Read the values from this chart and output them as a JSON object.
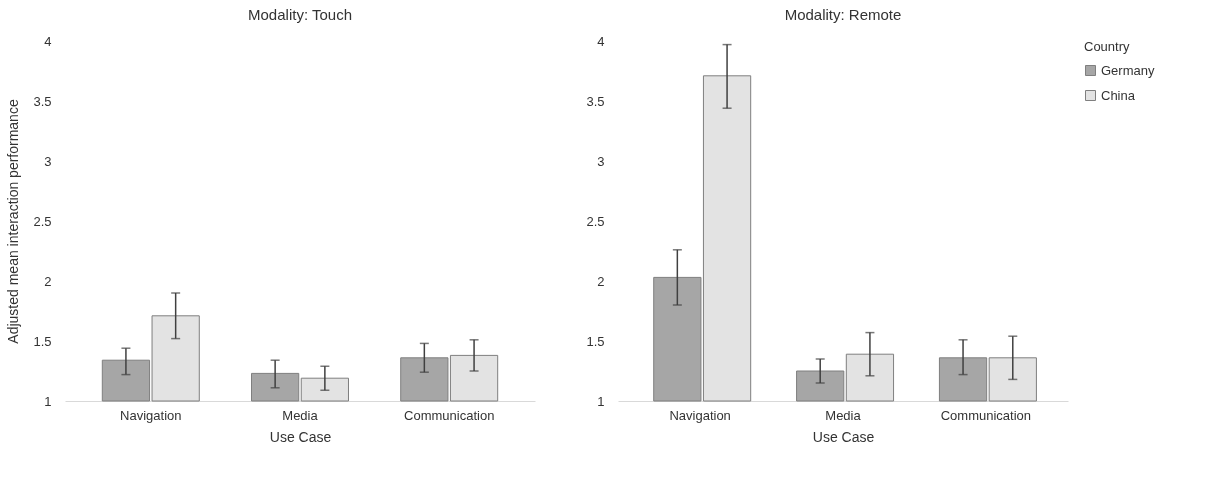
{
  "chart_data": [
    {
      "type": "bar",
      "title": "Modality: Touch",
      "xlabel": "Use Case",
      "ylabel": "Adjusted mean interaction performance",
      "categories": [
        "Navigation",
        "Media",
        "Communication"
      ],
      "ylim": [
        1,
        4
      ],
      "yticks": [
        1,
        1.5,
        2,
        2.5,
        3,
        3.5,
        4
      ],
      "grid": false,
      "legend": false,
      "series": [
        {
          "color": "#a6a6a6",
          "values": [
            1.34,
            1.23,
            1.36
          ],
          "errors": [
            [
              1.22,
              1.44
            ],
            [
              1.11,
              1.34
            ],
            [
              1.24,
              1.48
            ]
          ]
        },
        {
          "color": "#e3e3e3",
          "values": [
            1.71,
            1.19,
            1.38
          ],
          "errors": [
            [
              1.52,
              1.9
            ],
            [
              1.09,
              1.29
            ],
            [
              1.25,
              1.51
            ]
          ]
        }
      ]
    },
    {
      "type": "bar",
      "title": "Modality: Remote",
      "xlabel": "Use Case",
      "legend_title": "Country",
      "categories": [
        "Navigation",
        "Media",
        "Communication"
      ],
      "ylim": [
        1,
        4
      ],
      "yticks": [
        1,
        1.5,
        2,
        2.5,
        3,
        3.5,
        4
      ],
      "grid": false,
      "legend": "right",
      "series": [
        {
          "name": "Germany",
          "color": "#a6a6a6",
          "values": [
            2.03,
            1.25,
            1.36
          ],
          "errors": [
            [
              1.8,
              2.26
            ],
            [
              1.15,
              1.35
            ],
            [
              1.22,
              1.51
            ]
          ]
        },
        {
          "name": "China",
          "color": "#e3e3e3",
          "values": [
            3.71,
            1.39,
            1.36
          ],
          "errors": [
            [
              3.44,
              3.97
            ],
            [
              1.21,
              1.57
            ],
            [
              1.18,
              1.54
            ]
          ]
        }
      ]
    }
  ]
}
